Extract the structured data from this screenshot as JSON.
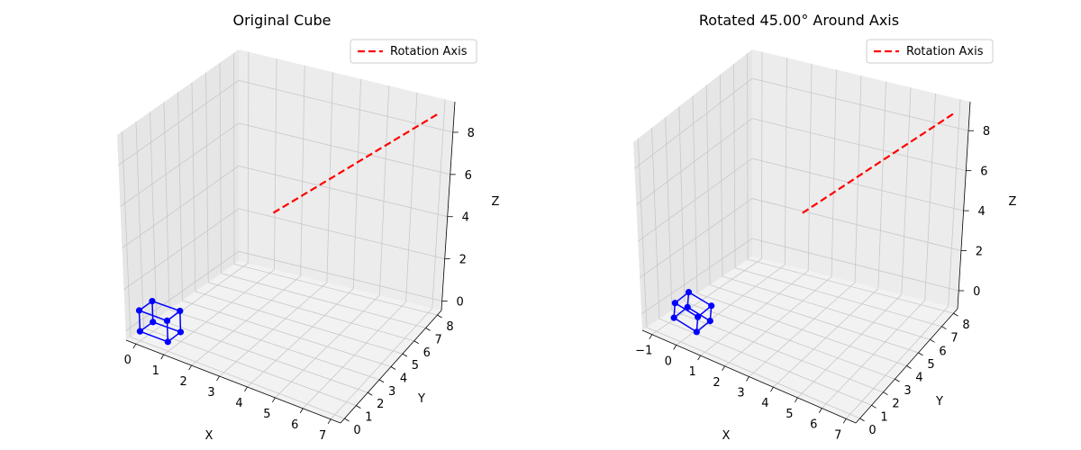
{
  "chart_data": [
    {
      "type": "scatter3d",
      "title": "Original Cube",
      "xlabel": "X",
      "ylabel": "Y",
      "zlabel": "Z",
      "xlim": [
        -0.35,
        7.35
      ],
      "ylim": [
        -0.35,
        8.35
      ],
      "zlim": [
        -0.45,
        9.45
      ],
      "xticks": [
        "0",
        "1",
        "2",
        "3",
        "4",
        "5",
        "6",
        "7"
      ],
      "yticks": [
        "0",
        "1",
        "2",
        "3",
        "4",
        "5",
        "6",
        "7",
        "8"
      ],
      "zticks": [
        "0",
        "2",
        "4",
        "6",
        "8"
      ],
      "xtick_values": [
        0,
        1,
        2,
        3,
        4,
        5,
        6,
        7
      ],
      "ytick_values": [
        0,
        1,
        2,
        3,
        4,
        5,
        6,
        7,
        8
      ],
      "ztick_values": [
        0,
        2,
        4,
        6,
        8
      ],
      "grid": true,
      "legend": {
        "position": "top-right",
        "entries": [
          "Rotation Axis"
        ]
      },
      "series": [
        {
          "name": "Rotation Axis",
          "style": "dashed-line",
          "color": "#ff0000",
          "points": [
            [
              3,
              4,
              5
            ],
            [
              7,
              8,
              9
            ]
          ]
        },
        {
          "name": "",
          "style": "cube",
          "color": "#0000ff",
          "points": [
            [
              0,
              0,
              0
            ],
            [
              1,
              0,
              0
            ],
            [
              1,
              1,
              0
            ],
            [
              0,
              1,
              0
            ],
            [
              0,
              0,
              1
            ],
            [
              1,
              0,
              1
            ],
            [
              1,
              1,
              1
            ],
            [
              0,
              1,
              1
            ]
          ],
          "edges": [
            [
              0,
              1
            ],
            [
              1,
              2
            ],
            [
              2,
              3
            ],
            [
              3,
              0
            ],
            [
              4,
              5
            ],
            [
              5,
              6
            ],
            [
              6,
              7
            ],
            [
              7,
              4
            ],
            [
              0,
              4
            ],
            [
              1,
              5
            ],
            [
              2,
              6
            ],
            [
              3,
              7
            ]
          ]
        }
      ]
    },
    {
      "type": "scatter3d",
      "title": "Rotated 45.00° Around Axis",
      "xlabel": "X",
      "ylabel": "Y",
      "zlabel": "Z",
      "xlim": [
        -1.4,
        7.4
      ],
      "ylim": [
        -0.35,
        8.35
      ],
      "zlim": [
        -0.9,
        9.45
      ],
      "xticks": [
        "−1",
        "0",
        "1",
        "2",
        "3",
        "4",
        "5",
        "6",
        "7"
      ],
      "yticks": [
        "0",
        "1",
        "2",
        "3",
        "4",
        "5",
        "6",
        "7",
        "8"
      ],
      "zticks": [
        "0",
        "2",
        "4",
        "6",
        "8"
      ],
      "xtick_values": [
        -1,
        0,
        1,
        2,
        3,
        4,
        5,
        6,
        7
      ],
      "ytick_values": [
        0,
        1,
        2,
        3,
        4,
        5,
        6,
        7,
        8
      ],
      "ztick_values": [
        0,
        2,
        4,
        6,
        8
      ],
      "grid": true,
      "legend": {
        "position": "top-right",
        "entries": [
          "Rotation Axis"
        ]
      },
      "series": [
        {
          "name": "Rotation Axis",
          "style": "dashed-line",
          "color": "#ff0000",
          "points": [
            [
              3,
              4,
              5
            ],
            [
              7,
              8,
              9
            ]
          ]
        },
        {
          "name": "",
          "style": "cube",
          "color": "#0000ff",
          "points": [
            [
              -0.35,
              0.2,
              0.1
            ],
            [
              0.55,
              0.25,
              -0.2
            ],
            [
              0.7,
              1.05,
              0.05
            ],
            [
              -0.2,
              1.0,
              0.35
            ],
            [
              -0.2,
              0.05,
              1.05
            ],
            [
              0.7,
              0.1,
              0.75
            ],
            [
              0.85,
              0.9,
              1.0
            ],
            [
              -0.05,
              0.85,
              1.3
            ]
          ],
          "edges": [
            [
              0,
              1
            ],
            [
              1,
              2
            ],
            [
              2,
              3
            ],
            [
              3,
              0
            ],
            [
              4,
              5
            ],
            [
              5,
              6
            ],
            [
              6,
              7
            ],
            [
              7,
              4
            ],
            [
              0,
              4
            ],
            [
              1,
              5
            ],
            [
              2,
              6
            ],
            [
              3,
              7
            ]
          ]
        }
      ]
    }
  ]
}
